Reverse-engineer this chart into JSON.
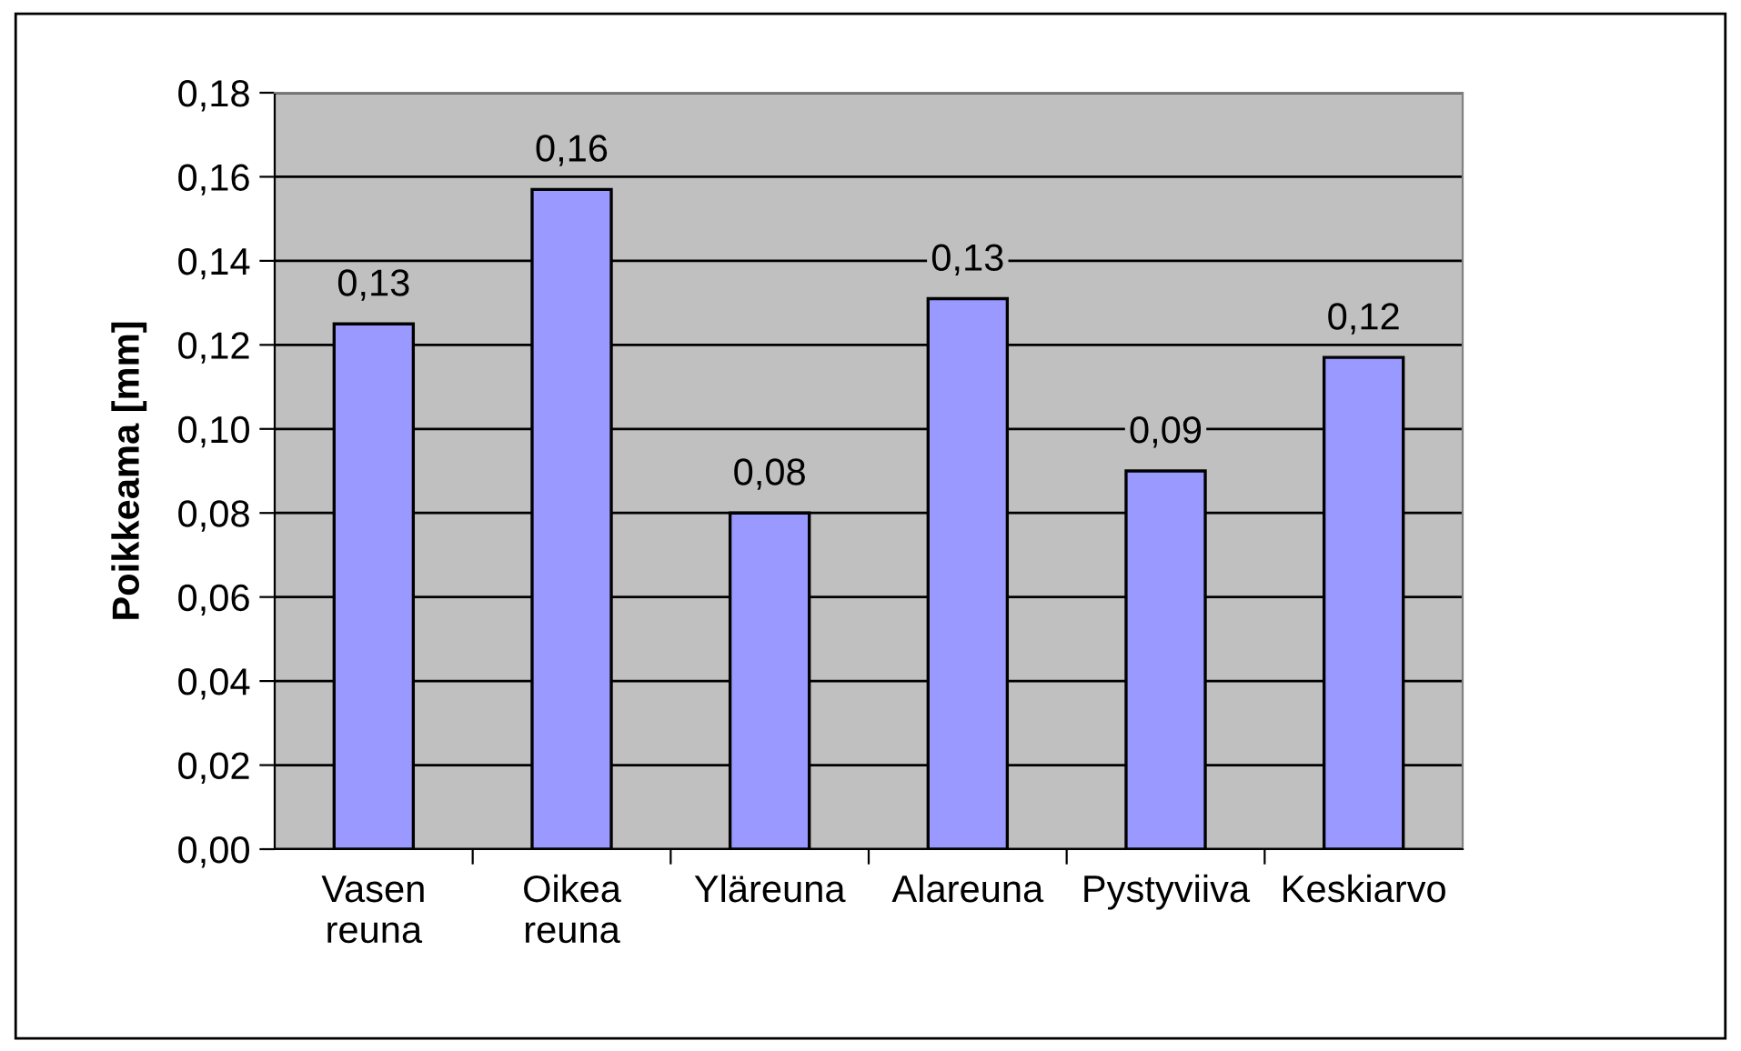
{
  "chart_data": {
    "type": "bar",
    "ylabel": "Poikkeama [mm]",
    "categories": [
      "Vasen\nreuna",
      "Oikea\nreuna",
      "Yläreuna",
      "Alareuna",
      "Pystyviiva",
      "Keskiarvo"
    ],
    "values": [
      0.125,
      0.157,
      0.08,
      0.131,
      0.09,
      0.117
    ],
    "value_labels": [
      "0,13",
      "0,16",
      "0,08",
      "0,13",
      "0,09",
      "0,12"
    ],
    "color": "#9999ff",
    "ylim": [
      0,
      0.18
    ],
    "yticks": [
      {
        "value": 0,
        "label": "0,00"
      },
      {
        "value": 0.02,
        "label": "0,02"
      },
      {
        "value": 0.04,
        "label": "0,04"
      },
      {
        "value": 0.06,
        "label": "0,06"
      },
      {
        "value": 0.08,
        "label": "0,08"
      },
      {
        "value": 0.1,
        "label": "0,10"
      },
      {
        "value": 0.12,
        "label": "0,12"
      },
      {
        "value": 0.14,
        "label": "0,14"
      },
      {
        "value": 0.16,
        "label": "0,16"
      },
      {
        "value": 0.18,
        "label": "0,18"
      }
    ],
    "grid": "y",
    "legend": false
  }
}
